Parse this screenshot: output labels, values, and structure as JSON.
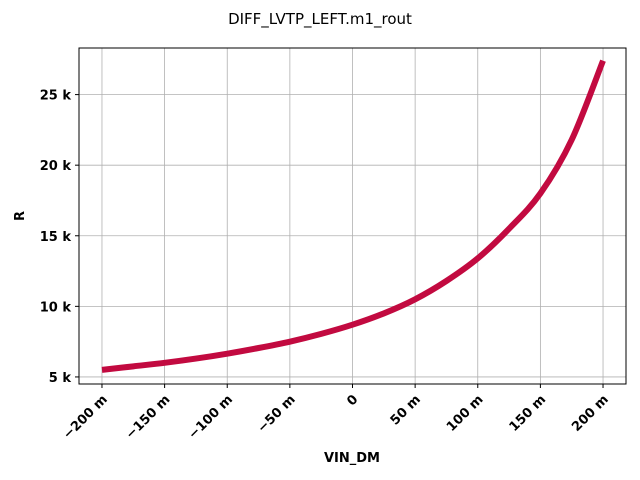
{
  "chart_data": {
    "type": "line",
    "title": "DIFF_LVTP_LEFT.m1_rout",
    "xlabel": "VIN_DM",
    "ylabel": "R",
    "xlim": [
      -0.2,
      0.2
    ],
    "ylim": [
      4.5,
      28.3
    ],
    "x_ticks": [
      -0.2,
      -0.15,
      -0.1,
      -0.05,
      0,
      0.05,
      0.1,
      0.15,
      0.2
    ],
    "x_tick_labels": [
      "−200 m",
      "−150 m",
      "−100 m",
      "−50 m",
      "0",
      "50 m",
      "100 m",
      "150 m",
      "200 m"
    ],
    "y_ticks": [
      5,
      10,
      15,
      20,
      25
    ],
    "y_tick_labels": [
      "5 k",
      "10 k",
      "15 k",
      "20 k",
      "25 k"
    ],
    "y_unit_scale": 1000,
    "grid": true,
    "series": [
      {
        "color": "#c20a40",
        "x": [
          -0.2,
          -0.175,
          -0.15,
          -0.125,
          -0.1,
          -0.075,
          -0.05,
          -0.025,
          0,
          0.025,
          0.05,
          0.075,
          0.1,
          0.125,
          0.15,
          0.175,
          0.2
        ],
        "y": [
          5.5,
          5.75,
          6.0,
          6.3,
          6.65,
          7.05,
          7.5,
          8.05,
          8.7,
          9.5,
          10.5,
          11.8,
          13.4,
          15.5,
          18.0,
          21.8,
          27.4
        ]
      }
    ]
  }
}
